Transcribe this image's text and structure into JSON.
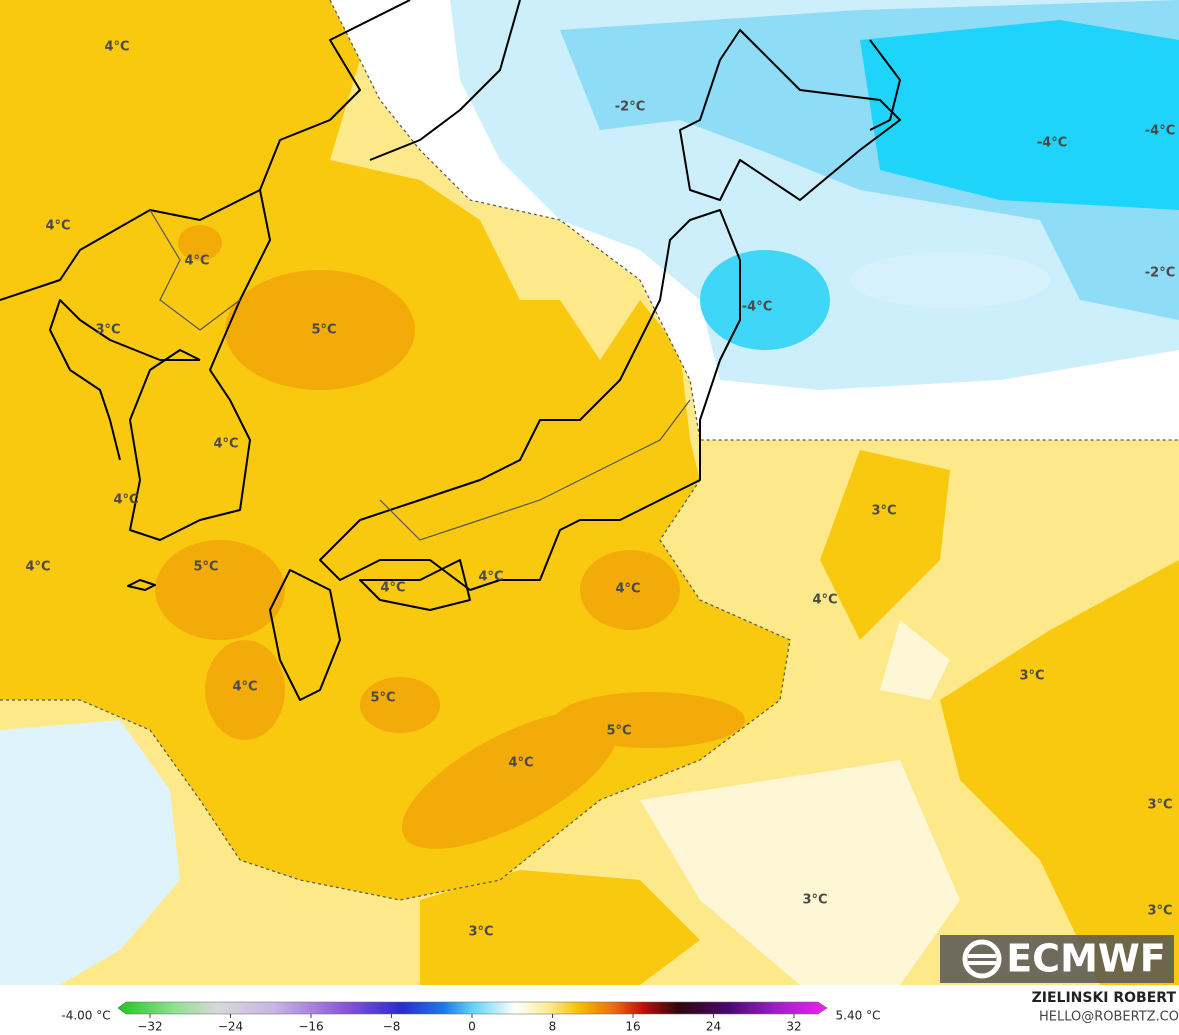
{
  "map": {
    "labels": [
      "4°C",
      "-2°C",
      "-4°C",
      "-4°C",
      "4°C",
      "4°C",
      "-2°C",
      "-4°C",
      "5°C",
      "3°C",
      "4°C",
      "4°C",
      "3°C",
      "4°C",
      "5°C",
      "4°C",
      "4°C",
      "4°C",
      "4°C",
      "3°C",
      "4°C",
      "5°C",
      "5°C",
      "4°C",
      "3°C",
      "3°C",
      "3°C",
      "3°C"
    ]
  },
  "colorbar": {
    "min_label": "-4.00 °C",
    "max_label": "5.40 °C",
    "ticks": [
      "−32",
      "−24",
      "−16",
      "−8",
      "0",
      "8",
      "16",
      "24",
      "32"
    ]
  },
  "logo": "ECMWF",
  "credit": {
    "name": "ZIELINSKI ROBERT",
    "contact": "HELLO@ROBERTZ.CO"
  }
}
